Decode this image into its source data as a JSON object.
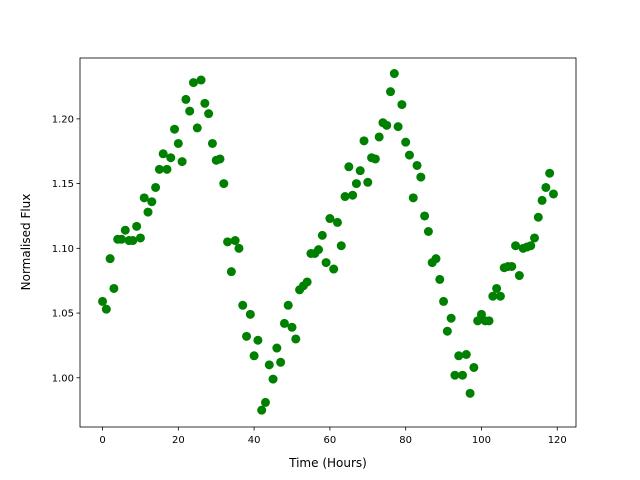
{
  "chart_data": {
    "type": "scatter",
    "x_label": "Time (Hours)",
    "y_label": "Normalised Flux",
    "color": "#008000",
    "x": [
      0,
      1,
      2,
      3,
      4,
      5,
      6,
      7,
      8,
      9,
      10,
      11,
      12,
      13,
      14,
      15,
      16,
      17,
      18,
      19,
      20,
      21,
      22,
      23,
      24,
      25,
      26,
      27,
      28,
      29,
      30,
      31,
      32,
      33,
      34,
      35,
      36,
      37,
      38,
      39,
      40,
      41,
      42,
      43,
      44,
      45,
      46,
      47,
      48,
      49,
      50,
      51,
      52,
      53,
      54,
      55,
      56,
      57,
      58,
      59,
      60,
      61,
      62,
      63,
      64,
      65,
      66,
      67,
      68,
      69,
      70,
      71,
      72,
      73,
      74,
      75,
      76,
      77,
      78,
      79,
      80,
      81,
      82,
      83,
      84,
      85,
      86,
      87,
      88,
      89,
      90,
      91,
      92,
      93,
      94,
      95,
      96,
      97,
      98,
      99,
      100,
      101,
      102,
      103,
      104,
      105,
      106,
      107,
      108,
      109,
      110,
      111,
      112,
      113,
      114,
      115,
      116,
      117,
      118,
      119
    ],
    "values": [
      1.059,
      1.053,
      1.092,
      1.069,
      1.107,
      1.107,
      1.114,
      1.106,
      1.106,
      1.117,
      1.108,
      1.139,
      1.128,
      1.136,
      1.147,
      1.161,
      1.173,
      1.161,
      1.17,
      1.192,
      1.181,
      1.167,
      1.215,
      1.206,
      1.228,
      1.193,
      1.23,
      1.212,
      1.204,
      1.181,
      1.168,
      1.169,
      1.15,
      1.105,
      1.082,
      1.106,
      1.1,
      1.056,
      1.032,
      1.049,
      1.017,
      1.029,
      0.975,
      0.981,
      1.01,
      0.999,
      1.023,
      1.012,
      1.042,
      1.056,
      1.039,
      1.03,
      1.068,
      1.071,
      1.074,
      1.096,
      1.096,
      1.099,
      1.11,
      1.089,
      1.123,
      1.084,
      1.12,
      1.102,
      1.14,
      1.163,
      1.141,
      1.15,
      1.16,
      1.183,
      1.151,
      1.17,
      1.169,
      1.186,
      1.197,
      1.195,
      1.221,
      1.235,
      1.194,
      1.211,
      1.182,
      1.172,
      1.139,
      1.164,
      1.155,
      1.125,
      1.113,
      1.089,
      1.092,
      1.076,
      1.059,
      1.036,
      1.046,
      1.002,
      1.017,
      1.002,
      1.018,
      0.988,
      1.008,
      1.044,
      1.049,
      1.044,
      1.044,
      1.063,
      1.069,
      1.063,
      1.085,
      1.086,
      1.086,
      1.102,
      1.079,
      1.1,
      1.101,
      1.102,
      1.108,
      1.124,
      1.137,
      1.147,
      1.158,
      1.142
    ],
    "xlim": [
      -5.95,
      124.95
    ],
    "ylim": [
      0.962,
      1.247
    ],
    "xticks": [
      0,
      20,
      40,
      60,
      80,
      100,
      120
    ],
    "yticks": [
      {
        "value": 1.0,
        "label": "1.00"
      },
      1.05,
      {
        "value": 1.1,
        "label": "1.10"
      },
      1.15,
      {
        "value": 1.2,
        "label": "1.20"
      }
    ]
  }
}
